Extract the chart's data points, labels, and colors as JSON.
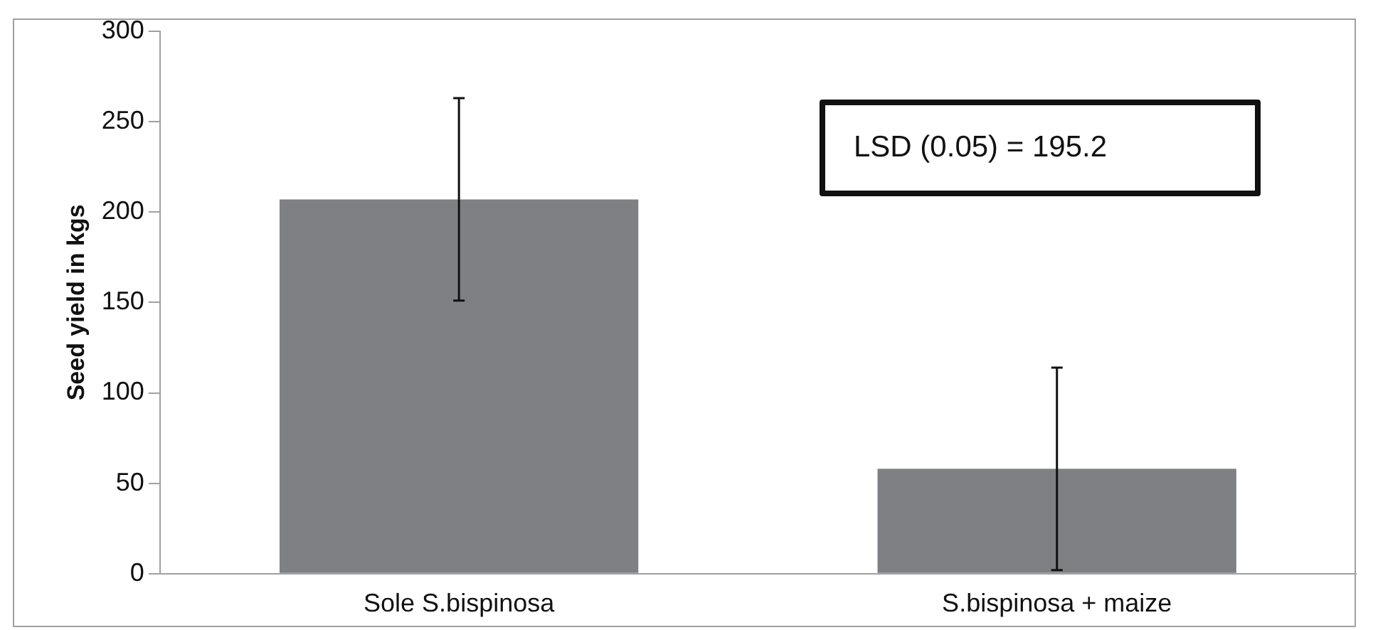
{
  "chart_data": {
    "type": "bar",
    "ylabel": "Seed yield in kgs",
    "categories": [
      "Sole S.bispinosa",
      "S.bispinosa + maize"
    ],
    "values": [
      207,
      58
    ],
    "errors": [
      56,
      56
    ],
    "color": "#7f8084",
    "ylim": [
      0,
      300
    ],
    "yticks": [
      0,
      50,
      100,
      150,
      200,
      250,
      300
    ],
    "grid": false,
    "legend": false,
    "annotations": [
      "LSD (0.05) = 195.2"
    ]
  }
}
